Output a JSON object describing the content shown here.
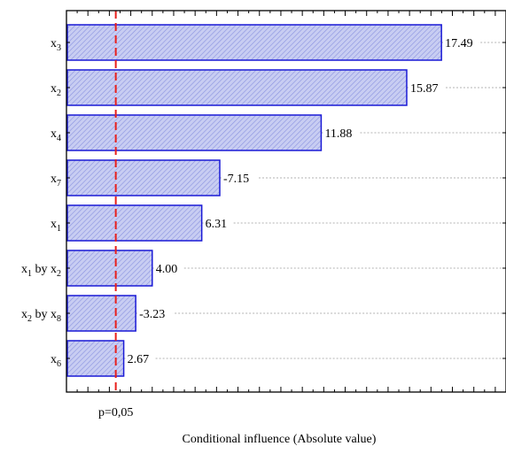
{
  "chart_data": {
    "type": "bar",
    "orientation": "horizontal",
    "title": "",
    "xlabel": "Conditional influence (Absolute value)",
    "ylabel": "",
    "xlim": [
      0,
      20.5
    ],
    "grid": "horizontal dotted lines at bar value labels",
    "legend": "none",
    "categories": [
      {
        "base": "x",
        "sub": "3"
      },
      {
        "base": "x",
        "sub": "2"
      },
      {
        "base": "x",
        "sub": "4"
      },
      {
        "base": "x",
        "sub": "7"
      },
      {
        "base": "x",
        "sub": "1"
      },
      {
        "base": "x",
        "sub": "1",
        "join": " by ",
        "base2": "x",
        "sub2": "2"
      },
      {
        "base": "x",
        "sub": "2",
        "join": " by ",
        "base2": "x",
        "sub2": "8"
      },
      {
        "base": "x",
        "sub": "6"
      }
    ],
    "values": [
      17.49,
      15.87,
      11.88,
      7.15,
      6.31,
      4.0,
      3.23,
      2.67
    ],
    "value_labels": [
      "17.49",
      "15.87",
      "11.88",
      "-7.15",
      "6.31",
      "4.00",
      "-3.23",
      "2.67"
    ],
    "reference_line": {
      "value": 2.3,
      "label": "p=0,05",
      "color": "#e8201c",
      "style": "dashed"
    },
    "colors": {
      "bar_fill": "#c8cdf2",
      "bar_hatch": "#8a92e0",
      "bar_stroke": "#1a1ad6"
    }
  }
}
